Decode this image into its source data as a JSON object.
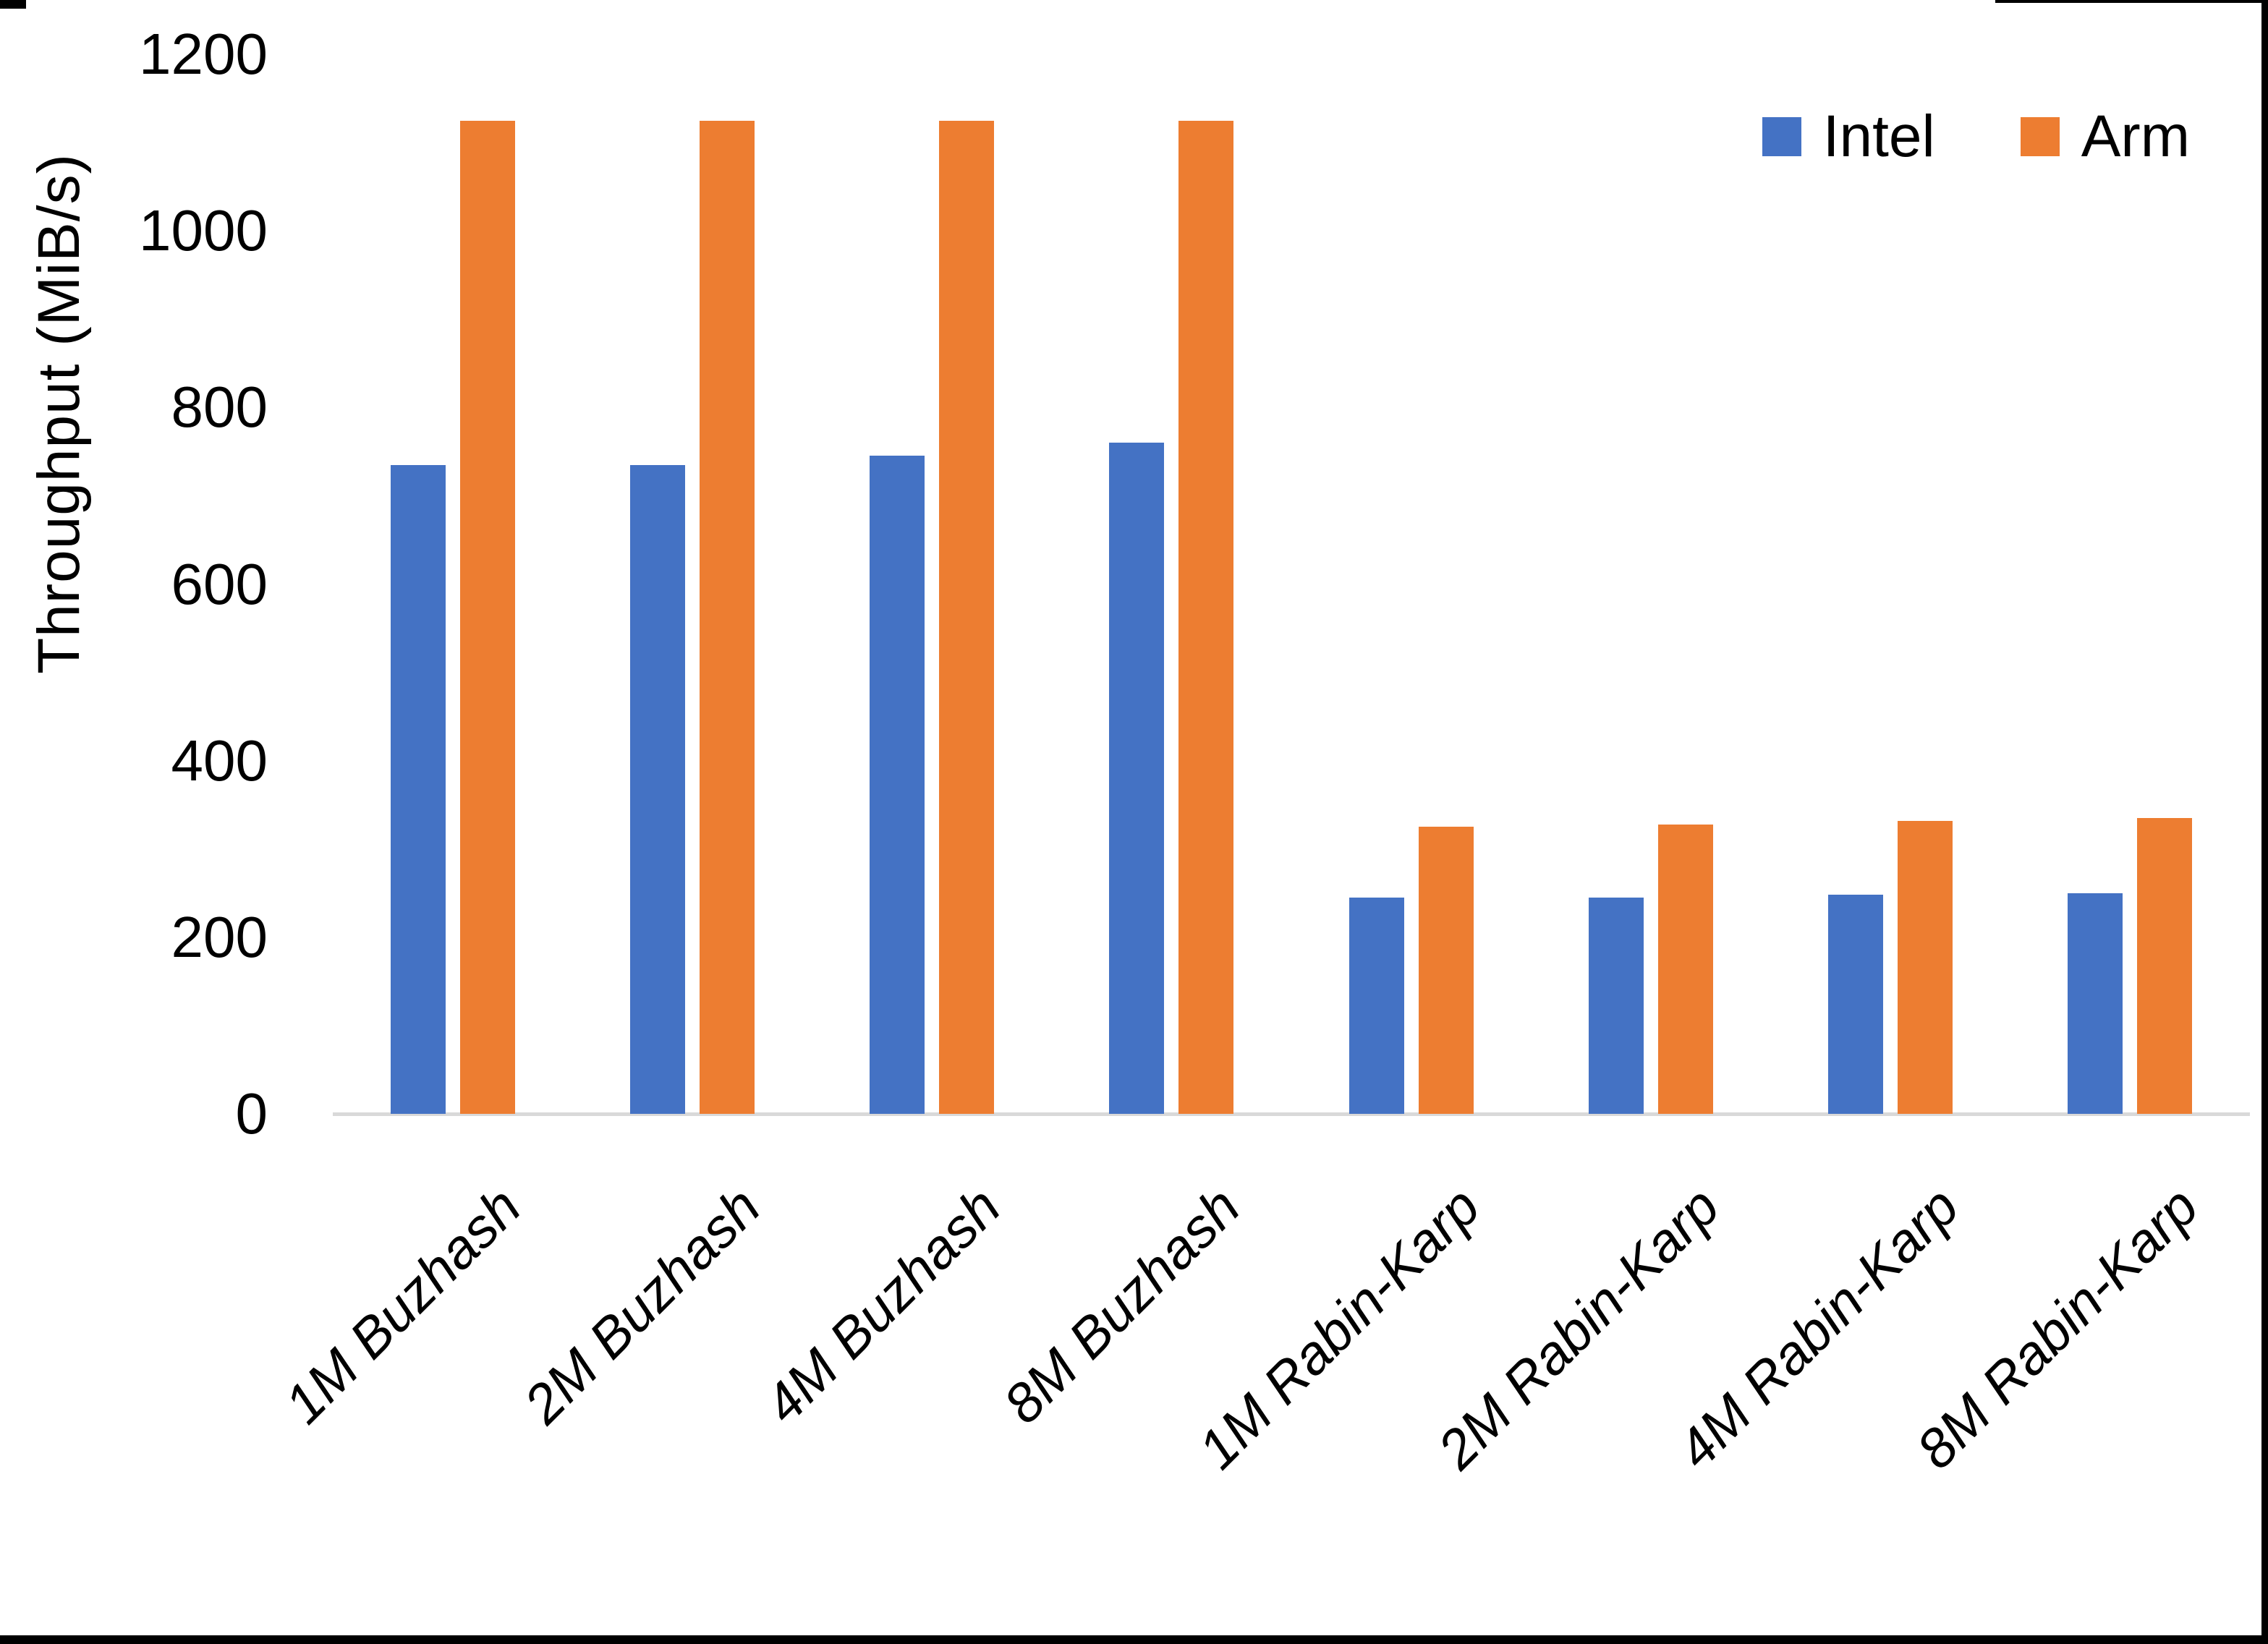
{
  "chart_data": {
    "type": "bar",
    "title": "",
    "categories": [
      "1M Buzhash",
      "2M Buzhash",
      "4M Buzhash",
      "8M Buzhash",
      "1M Rabin-Karp",
      "2M Rabin-Karp",
      "4M Rabin-Karp",
      "8M Rabin-Karp"
    ],
    "series": [
      {
        "name": "Intel",
        "color": "#4472C4",
        "values": [
          735,
          735,
          745,
          760,
          245,
          245,
          248,
          250
        ]
      },
      {
        "name": "Arm",
        "color": "#ED7D31",
        "values": [
          1125,
          1125,
          1125,
          1125,
          325,
          328,
          332,
          335
        ]
      }
    ],
    "xlabel": "",
    "ylabel": "Throughput (MiB/s)",
    "ylim": [
      0,
      1200
    ],
    "yticks": [
      0,
      200,
      400,
      600,
      800,
      1000,
      1200
    ],
    "grid": false,
    "legend_position": "top-right",
    "axis_line_color": "#D9D9D9",
    "text_color": "#000000",
    "background_color": "#FFFFFF"
  }
}
